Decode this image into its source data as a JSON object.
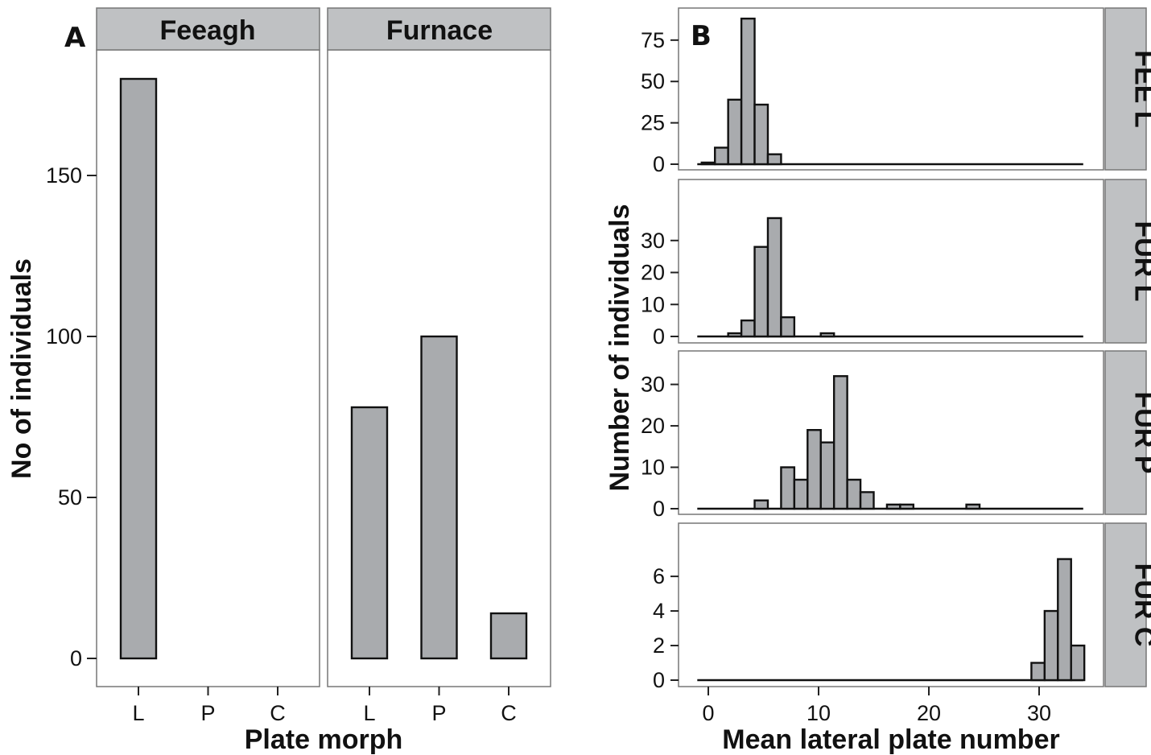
{
  "panel_a": {
    "letter": "A",
    "facets": [
      "Feeagh",
      "Furnace"
    ],
    "xlabel": "Plate morph",
    "ylabel": "No of individuals",
    "yticks": [
      0,
      50,
      100,
      150
    ]
  },
  "panel_b": {
    "letter": "B",
    "facets": [
      "FEE L",
      "FUR L",
      "FUR P",
      "FUR C"
    ],
    "xlabel": "Mean lateral plate number",
    "ylabel": "Number of individuals",
    "xticks": [
      0,
      10,
      20,
      30
    ]
  },
  "colors": {
    "bar_fill": "#a9abae",
    "strip_fill": "#bfc1c3",
    "frame": "#777777"
  },
  "chart_data": [
    {
      "type": "bar",
      "facet": "Feeagh",
      "categories": [
        "L",
        "P",
        "C"
      ],
      "values": [
        180,
        0,
        0
      ],
      "xlabel": "Plate morph",
      "ylabel": "No of individuals",
      "ylim": [
        0,
        190
      ]
    },
    {
      "type": "bar",
      "facet": "Furnace",
      "categories": [
        "L",
        "P",
        "C"
      ],
      "values": [
        78,
        100,
        14
      ],
      "xlabel": "Plate morph",
      "ylabel": "No of individuals",
      "ylim": [
        0,
        190
      ]
    },
    {
      "type": "bar",
      "subtype": "histogram",
      "facet": "FEE L",
      "bin_width": 1.2,
      "x": [
        0.0,
        1.2,
        2.4,
        3.6,
        4.8,
        6.0
      ],
      "values": [
        1,
        10,
        39,
        88,
        36,
        6
      ],
      "yticks": [
        0,
        25,
        50,
        75
      ],
      "ylim": [
        0,
        90
      ],
      "xlim": [
        -1,
        34
      ]
    },
    {
      "type": "bar",
      "subtype": "histogram",
      "facet": "FUR L",
      "bin_width": 1.2,
      "x": [
        2.4,
        3.6,
        4.8,
        6.0,
        7.2,
        8.4,
        9.6,
        10.8,
        12.0
      ],
      "values": [
        1,
        5,
        28,
        37,
        6,
        0,
        0,
        1,
        0
      ],
      "yticks": [
        0,
        10,
        20,
        30
      ],
      "ylim": [
        0,
        38
      ],
      "xlim": [
        -1,
        34
      ]
    },
    {
      "type": "bar",
      "subtype": "histogram",
      "facet": "FUR P",
      "bin_width": 1.2,
      "x": [
        4.8,
        6.0,
        7.2,
        8.4,
        9.6,
        10.8,
        12.0,
        13.2,
        14.4,
        15.6,
        16.8,
        18.0,
        19.2,
        20.4,
        21.6,
        22.8,
        24.0
      ],
      "values": [
        2,
        0,
        10,
        7,
        19,
        16,
        32,
        7,
        4,
        0,
        1,
        1,
        0,
        0,
        0,
        0,
        1
      ],
      "yticks": [
        0,
        10,
        20,
        30
      ],
      "ylim": [
        0,
        34
      ],
      "xlim": [
        -1,
        34
      ]
    },
    {
      "type": "bar",
      "subtype": "histogram",
      "facet": "FUR C",
      "bin_width": 1.2,
      "x": [
        29.9,
        31.1,
        32.3,
        33.5
      ],
      "values": [
        1,
        4,
        7,
        2
      ],
      "yticks": [
        0,
        2,
        4,
        6
      ],
      "ylim": [
        0,
        7.4
      ],
      "xlim": [
        -1,
        34
      ]
    }
  ]
}
